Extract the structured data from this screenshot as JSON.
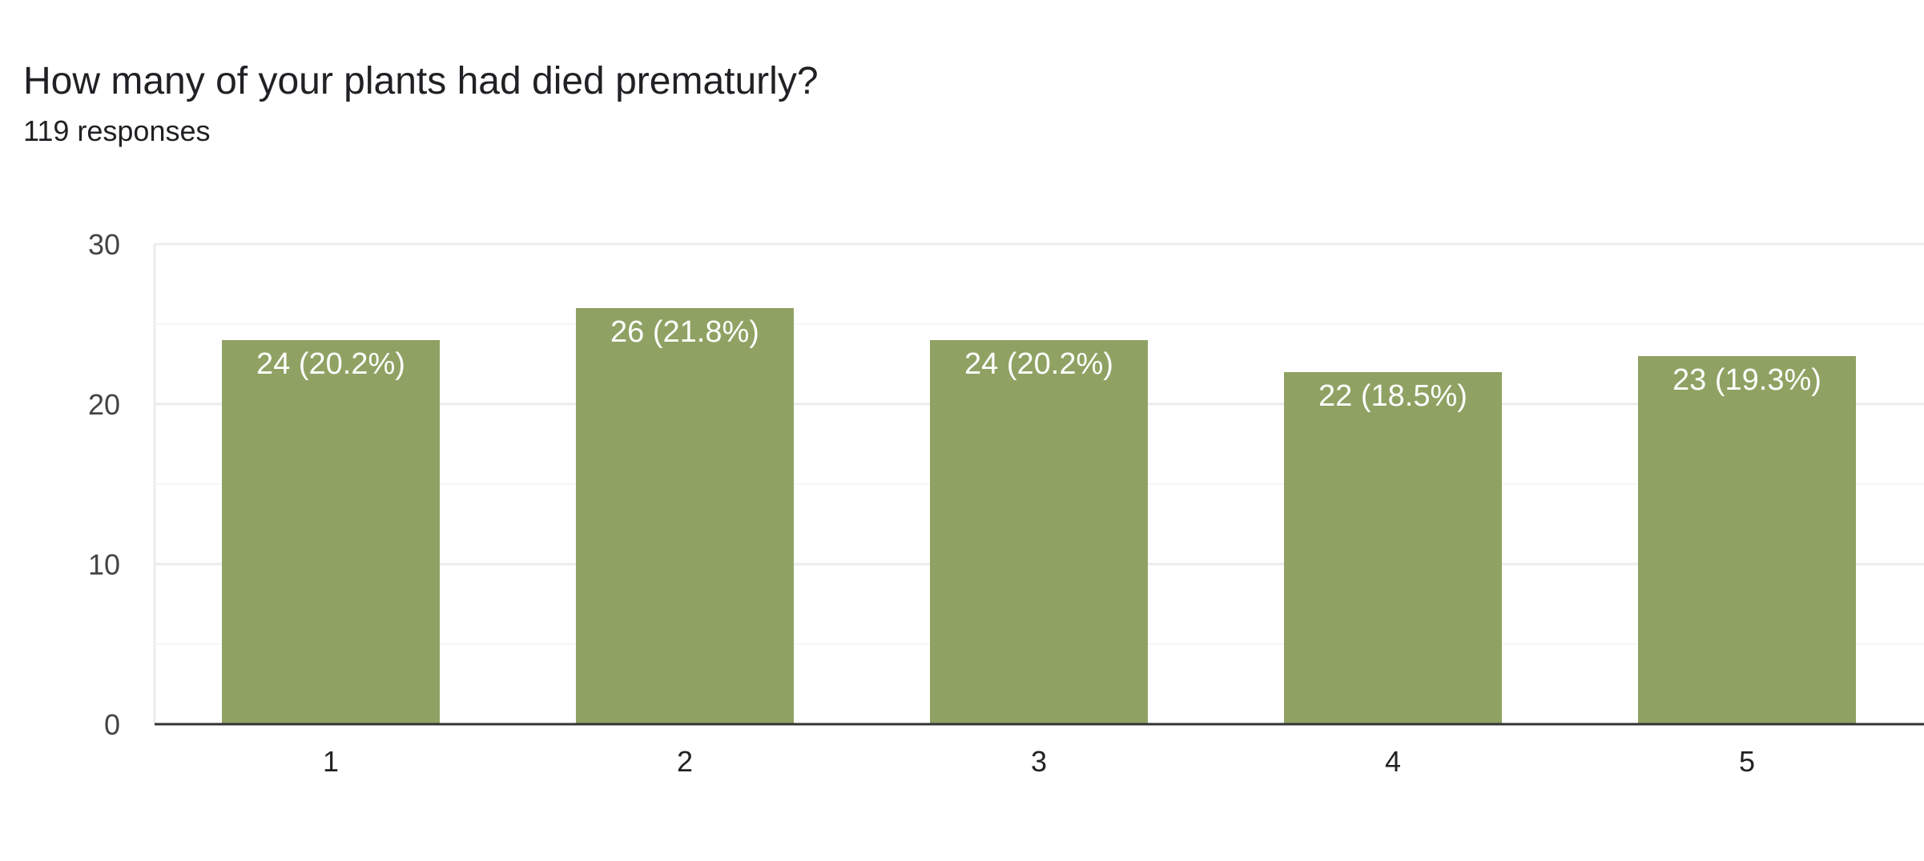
{
  "header": {
    "title": "How many of your plants had died prematurly?",
    "response_count": "119 responses"
  },
  "chart_data": {
    "type": "bar",
    "title": "How many of your plants had died prematurly?",
    "subtitle": "119 responses",
    "categories": [
      "1",
      "2",
      "3",
      "4",
      "5"
    ],
    "values": [
      24,
      26,
      24,
      22,
      23
    ],
    "data_labels": [
      "24 (20.2%)",
      "26 (21.8%)",
      "24 (20.2%)",
      "22 (18.5%)",
      "23 (19.3%)"
    ],
    "xlabel": "",
    "ylabel": "",
    "ylim": [
      0,
      30
    ],
    "yticks": [
      0,
      10,
      20,
      30
    ],
    "grid": true,
    "legend": "none",
    "bar_color": "#8fa263",
    "axis_color": "#333333",
    "gridline_color": "#ececec",
    "minor_gridline_color": "#f6f6f6"
  }
}
